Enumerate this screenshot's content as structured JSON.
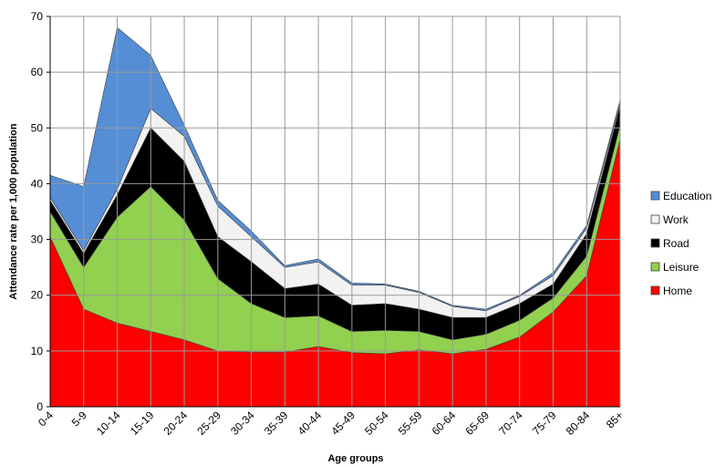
{
  "chart_data": {
    "type": "stacked_area",
    "x_label": "Age groups",
    "y_label": "Attendance rate per 1,000 population",
    "categories": [
      "0-4",
      "5-9",
      "10-14",
      "15-19",
      "20-24",
      "25-29",
      "30-34",
      "35-39",
      "40-44",
      "45-49",
      "50-54",
      "55-59",
      "60-64",
      "65-69",
      "70-74",
      "75-79",
      "80-84",
      "85+"
    ],
    "series": [
      {
        "name": "Home",
        "color": "#ff0000",
        "values": [
          30.5,
          17.5,
          15,
          13.5,
          12,
          10,
          9.8,
          9.8,
          10.8,
          9.7,
          9.5,
          10.2,
          9.5,
          10.3,
          12.5,
          17,
          23.5,
          48
        ]
      },
      {
        "name": "Leisure",
        "color": "#92d050",
        "values": [
          4.5,
          7.5,
          19,
          26,
          21.5,
          13,
          8.7,
          6.2,
          5.5,
          3.8,
          4.2,
          3.3,
          2.5,
          2.7,
          3,
          2.5,
          3.5,
          2.5
        ]
      },
      {
        "name": "Road",
        "color": "#000000",
        "values": [
          2,
          2.5,
          4,
          10.5,
          10.5,
          7.5,
          7.5,
          5.2,
          5.7,
          4.7,
          4.8,
          4,
          4,
          3,
          3,
          2.5,
          4,
          3.5
        ]
      },
      {
        "name": "Work",
        "color": "#f2f2f2",
        "values": [
          0.5,
          0.5,
          1,
          3.5,
          4.5,
          5.5,
          4.5,
          3.8,
          4,
          3.6,
          3.3,
          3,
          2,
          1.2,
          1.3,
          1.5,
          1,
          0.5
        ]
      },
      {
        "name": "Education",
        "color": "#558ed5",
        "values": [
          4,
          11.5,
          29,
          9.5,
          2,
          1,
          1,
          0.3,
          0.5,
          0.4,
          0.2,
          0.2,
          0.2,
          0.3,
          0.2,
          0.5,
          0.5,
          0.5
        ]
      }
    ],
    "ylim": [
      0,
      70
    ],
    "yticks": [
      0,
      10,
      20,
      30,
      40,
      50,
      60,
      70
    ],
    "grid": true,
    "legend": "right"
  }
}
